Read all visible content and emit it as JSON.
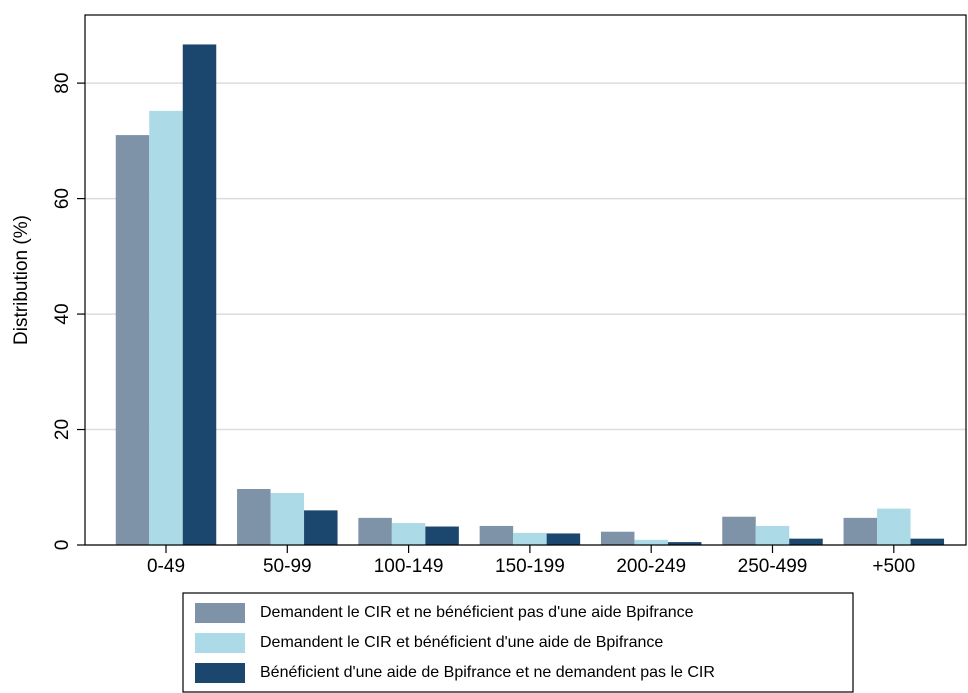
{
  "chart_data": {
    "type": "bar",
    "y_label": "Distribution (%)",
    "categories": [
      "0-49",
      "50-99",
      "100-149",
      "150-199",
      "200-249",
      "250-499",
      "+500"
    ],
    "series": [
      {
        "name": "Demandent le CIR et ne bénéficient pas d'une aide Bpifrance",
        "color": "#7f93a8",
        "values": [
          71,
          9.7,
          4.7,
          3.3,
          2.3,
          4.9,
          4.7
        ]
      },
      {
        "name": "Demandent le CIR et bénéficient d'une aide de Bpifrance",
        "color": "#acdae6",
        "values": [
          75.2,
          9.0,
          3.8,
          2.1,
          0.9,
          3.3,
          6.3
        ]
      },
      {
        "name": "Bénéficient d'une aide de Bpifrance et ne demandent pas le CIR",
        "color": "#1b476e",
        "values": [
          86.7,
          6.0,
          3.2,
          2.0,
          0.5,
          1.1,
          1.1
        ]
      }
    ],
    "ylim": [
      0,
      91.8
    ],
    "yticks": [
      0,
      20,
      40,
      60,
      80
    ],
    "grid": true
  }
}
